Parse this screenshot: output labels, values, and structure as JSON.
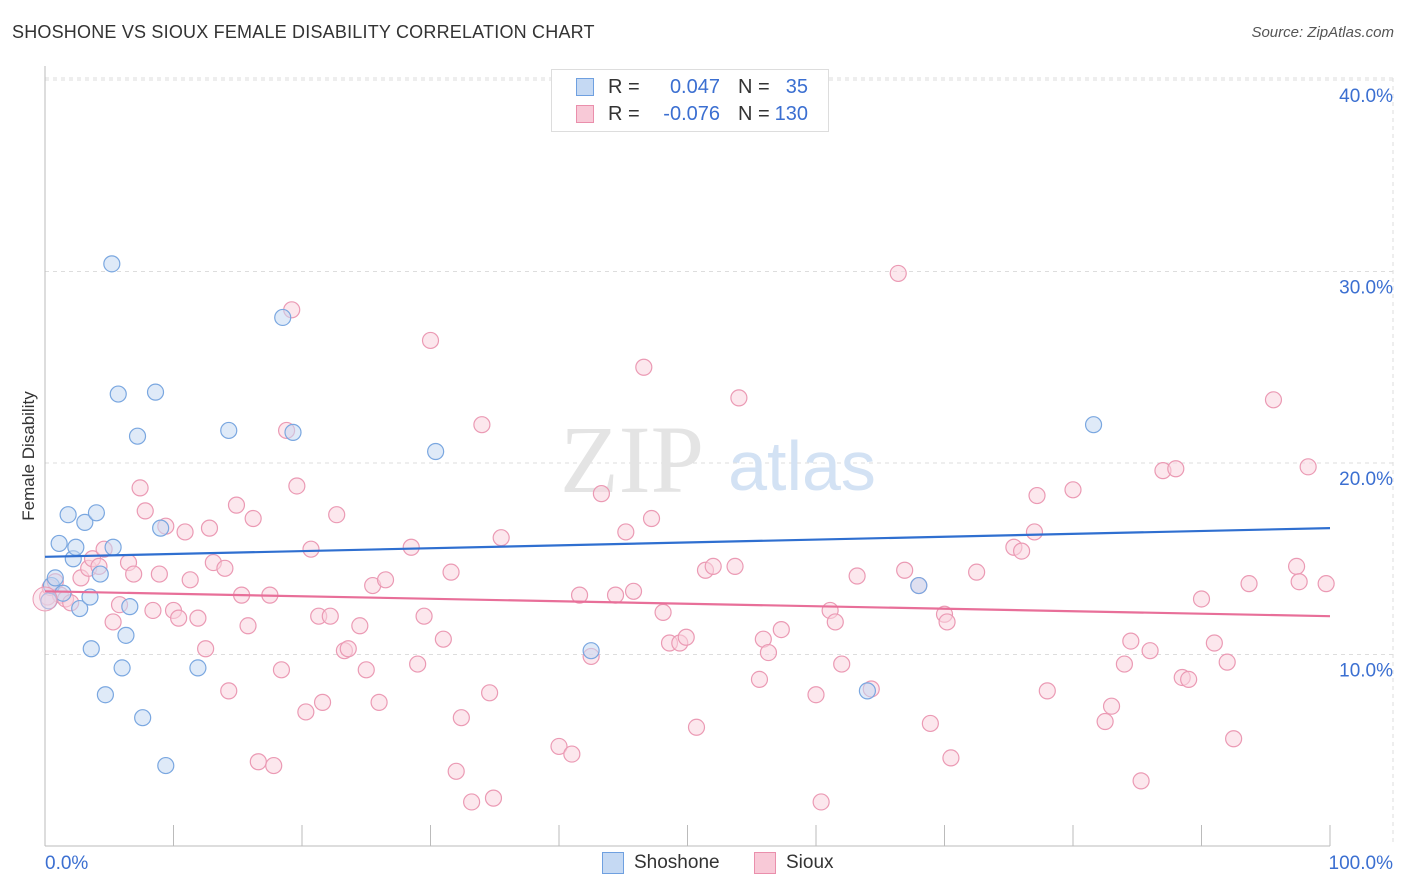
{
  "header": {
    "title": "SHOSHONE VS SIOUX FEMALE DISABILITY CORRELATION CHART",
    "source": "Source: ZipAtlas.com"
  },
  "legend": {
    "rows": [
      {
        "r_label": "R =",
        "r_value": "0.047",
        "n_label": "N =",
        "n_value": "35",
        "color": "#6fa0e0",
        "fill": "#c5d9f3"
      },
      {
        "r_label": "R =",
        "r_value": "-0.076",
        "n_label": "N =",
        "n_value": "130",
        "color": "#ea8fac",
        "fill": "#f8c9d7"
      }
    ],
    "bottom": [
      {
        "label": "Shoshone",
        "color": "#6fa0e0",
        "fill": "#c5d9f3"
      },
      {
        "label": "Sioux",
        "color": "#ea8fac",
        "fill": "#f8c9d7"
      }
    ]
  },
  "watermark": {
    "zip": "ZIP",
    "atlas": "atlas"
  },
  "colors": {
    "shoshone_stroke": "#7aa7e0",
    "shoshone_fill": "#c5d9f3",
    "shoshone_line": "#2f6fd0",
    "sioux_stroke": "#eb9ab4",
    "sioux_fill": "#f9d3df",
    "sioux_line": "#e86f99",
    "axis_text": "#3b6fd1",
    "grid": "#dddddd"
  },
  "chart_data": {
    "type": "scatter",
    "title": "SHOSHONE VS SIOUX FEMALE DISABILITY CORRELATION CHART",
    "xlabel": "",
    "ylabel": "Female Disability",
    "xlim": [
      0,
      100
    ],
    "ylim": [
      0,
      40
    ],
    "x_tick_labels": [
      "0.0%",
      "100.0%"
    ],
    "y_ticks": [
      10,
      20,
      30,
      40
    ],
    "y_tick_labels": [
      "10.0%",
      "20.0%",
      "30.0%",
      "40.0%"
    ],
    "grid": true,
    "legend_position": "top-center",
    "series": [
      {
        "name": "Shoshone",
        "trend": {
          "x": [
            0,
            100
          ],
          "y": [
            15.1,
            16.6
          ]
        },
        "points": [
          [
            0.3,
            12.8
          ],
          [
            0.5,
            13.6
          ],
          [
            0.8,
            14.0
          ],
          [
            1.1,
            15.8
          ],
          [
            1.4,
            13.2
          ],
          [
            1.8,
            17.3
          ],
          [
            2.2,
            15.0
          ],
          [
            2.4,
            15.6
          ],
          [
            2.7,
            12.4
          ],
          [
            3.1,
            16.9
          ],
          [
            3.5,
            13.0
          ],
          [
            3.6,
            10.3
          ],
          [
            4.0,
            17.4
          ],
          [
            4.3,
            14.2
          ],
          [
            4.7,
            7.9
          ],
          [
            5.2,
            30.4
          ],
          [
            5.3,
            15.6
          ],
          [
            5.7,
            23.6
          ],
          [
            6.0,
            9.3
          ],
          [
            6.3,
            11.0
          ],
          [
            6.6,
            12.5
          ],
          [
            7.2,
            21.4
          ],
          [
            7.6,
            6.7
          ],
          [
            8.6,
            23.7
          ],
          [
            9.0,
            16.6
          ],
          [
            9.4,
            4.2
          ],
          [
            11.9,
            9.3
          ],
          [
            14.3,
            21.7
          ],
          [
            18.5,
            27.6
          ],
          [
            19.3,
            21.6
          ],
          [
            30.4,
            20.6
          ],
          [
            42.5,
            10.2
          ],
          [
            64.0,
            8.1
          ],
          [
            68.0,
            13.6
          ],
          [
            81.6,
            22.0
          ]
        ]
      },
      {
        "name": "Sioux",
        "trend": {
          "x": [
            0,
            100
          ],
          "y": [
            13.3,
            12.0
          ]
        },
        "points": [
          [
            0.2,
            13.0
          ],
          [
            0.4,
            13.5
          ],
          [
            0.8,
            13.8
          ],
          [
            1.2,
            13.1
          ],
          [
            1.6,
            12.9
          ],
          [
            2.0,
            12.7
          ],
          [
            2.8,
            14.0
          ],
          [
            3.4,
            14.5
          ],
          [
            3.7,
            15.0
          ],
          [
            4.2,
            14.6
          ],
          [
            4.6,
            15.5
          ],
          [
            5.3,
            11.7
          ],
          [
            5.8,
            12.6
          ],
          [
            6.5,
            14.8
          ],
          [
            6.9,
            14.2
          ],
          [
            7.4,
            18.7
          ],
          [
            7.8,
            17.5
          ],
          [
            8.4,
            12.3
          ],
          [
            8.9,
            14.2
          ],
          [
            9.4,
            16.7
          ],
          [
            10.0,
            12.3
          ],
          [
            10.4,
            11.9
          ],
          [
            10.9,
            16.4
          ],
          [
            11.3,
            13.9
          ],
          [
            11.9,
            11.9
          ],
          [
            12.5,
            10.3
          ],
          [
            12.8,
            16.6
          ],
          [
            13.1,
            14.8
          ],
          [
            14.0,
            14.5
          ],
          [
            14.3,
            8.1
          ],
          [
            14.9,
            17.8
          ],
          [
            15.3,
            13.1
          ],
          [
            15.8,
            11.5
          ],
          [
            16.2,
            17.1
          ],
          [
            16.6,
            4.4
          ],
          [
            17.5,
            13.1
          ],
          [
            17.8,
            4.2
          ],
          [
            18.4,
            9.2
          ],
          [
            18.8,
            21.7
          ],
          [
            19.2,
            28.0
          ],
          [
            19.6,
            18.8
          ],
          [
            20.3,
            7.0
          ],
          [
            20.7,
            15.5
          ],
          [
            21.3,
            12.0
          ],
          [
            21.6,
            7.5
          ],
          [
            22.2,
            12.0
          ],
          [
            22.7,
            17.3
          ],
          [
            23.3,
            10.2
          ],
          [
            23.6,
            10.3
          ],
          [
            24.5,
            11.5
          ],
          [
            25.0,
            9.2
          ],
          [
            25.5,
            13.6
          ],
          [
            26.0,
            7.5
          ],
          [
            26.5,
            13.9
          ],
          [
            28.5,
            15.6
          ],
          [
            29.0,
            9.5
          ],
          [
            29.5,
            12.0
          ],
          [
            30.0,
            26.4
          ],
          [
            31.0,
            10.8
          ],
          [
            31.6,
            14.3
          ],
          [
            32.0,
            3.9
          ],
          [
            32.4,
            6.7
          ],
          [
            33.2,
            2.3
          ],
          [
            34.0,
            22.0
          ],
          [
            34.6,
            8.0
          ],
          [
            34.9,
            2.5
          ],
          [
            35.5,
            16.1
          ],
          [
            40.0,
            5.2
          ],
          [
            41.0,
            4.8
          ],
          [
            41.6,
            13.1
          ],
          [
            42.5,
            9.9
          ],
          [
            43.3,
            18.4
          ],
          [
            44.4,
            13.1
          ],
          [
            45.2,
            16.4
          ],
          [
            45.8,
            13.3
          ],
          [
            46.6,
            25.0
          ],
          [
            47.2,
            17.1
          ],
          [
            48.1,
            12.2
          ],
          [
            48.6,
            10.6
          ],
          [
            49.4,
            10.6
          ],
          [
            49.9,
            10.9
          ],
          [
            50.7,
            6.2
          ],
          [
            51.4,
            14.4
          ],
          [
            52.0,
            14.6
          ],
          [
            53.7,
            14.6
          ],
          [
            54.0,
            23.4
          ],
          [
            55.6,
            8.7
          ],
          [
            55.9,
            10.8
          ],
          [
            56.3,
            10.1
          ],
          [
            57.3,
            11.3
          ],
          [
            60.0,
            7.9
          ],
          [
            60.4,
            2.3
          ],
          [
            61.1,
            12.3
          ],
          [
            61.5,
            11.7
          ],
          [
            62.0,
            9.5
          ],
          [
            63.2,
            14.1
          ],
          [
            64.3,
            8.2
          ],
          [
            66.4,
            29.9
          ],
          [
            66.9,
            14.4
          ],
          [
            68.0,
            13.6
          ],
          [
            68.9,
            6.4
          ],
          [
            70.0,
            12.1
          ],
          [
            70.2,
            11.7
          ],
          [
            70.5,
            4.6
          ],
          [
            72.5,
            14.3
          ],
          [
            75.4,
            15.6
          ],
          [
            76.0,
            15.4
          ],
          [
            77.0,
            16.4
          ],
          [
            77.2,
            18.3
          ],
          [
            78.0,
            8.1
          ],
          [
            80.0,
            18.6
          ],
          [
            82.5,
            6.5
          ],
          [
            83.0,
            7.3
          ],
          [
            84.0,
            9.5
          ],
          [
            84.5,
            10.7
          ],
          [
            85.3,
            3.4
          ],
          [
            86.0,
            10.2
          ],
          [
            87.0,
            19.6
          ],
          [
            88.0,
            19.7
          ],
          [
            88.5,
            8.8
          ],
          [
            89.0,
            8.7
          ],
          [
            90.0,
            12.9
          ],
          [
            91.0,
            10.6
          ],
          [
            92.0,
            9.6
          ],
          [
            92.5,
            5.6
          ],
          [
            93.7,
            13.7
          ],
          [
            95.6,
            23.3
          ],
          [
            97.4,
            14.6
          ],
          [
            97.6,
            13.8
          ],
          [
            98.3,
            19.8
          ],
          [
            99.7,
            13.7
          ]
        ]
      }
    ]
  }
}
